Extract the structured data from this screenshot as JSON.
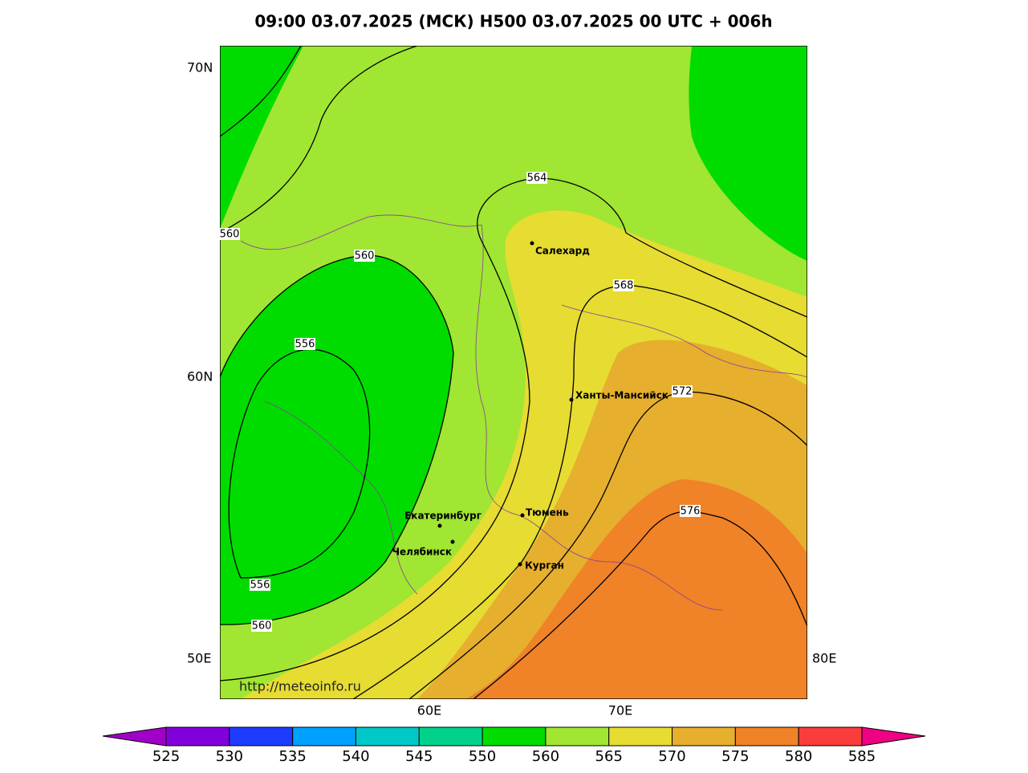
{
  "title": "09:00 03.07.2025 (МСК) H500  03.07.2025 00 UTC + 006h",
  "axis_labels": [
    "70N",
    "60N",
    "50E",
    "60E",
    "70E",
    "80E"
  ],
  "contour_labels": [
    564,
    560,
    560,
    556,
    568,
    572,
    576,
    556,
    560
  ],
  "cities": [
    "Салехард",
    "Ханты-Мансийск",
    "Екатеринбург",
    "Тюмень",
    "Челябинск",
    "Курган"
  ],
  "url": "http://meteoinfo.ru",
  "colorbar": {
    "levels": [
      525,
      530,
      535,
      540,
      545,
      550,
      560,
      565,
      570,
      575,
      580,
      585
    ],
    "colors": [
      "#a000c8",
      "#8200dc",
      "#1e3cff",
      "#00a0ff",
      "#00c8c8",
      "#00d28c",
      "#00dc00",
      "#a0e632",
      "#e6dc32",
      "#e6af2d",
      "#f08228",
      "#fa3c3c",
      "#f00082"
    ]
  }
}
